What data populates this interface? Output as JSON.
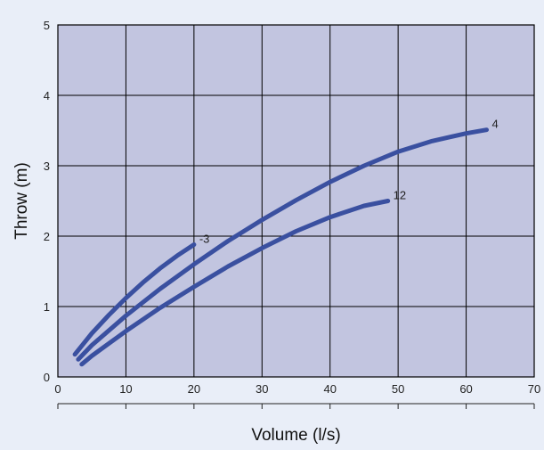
{
  "chart_data": {
    "type": "line",
    "title": "",
    "xlabel": "Volume  (l/s)",
    "ylabel": "Throw  (m)",
    "xlim": [
      0,
      70
    ],
    "ylim": [
      0,
      5
    ],
    "x_ticks": [
      "0",
      "10",
      "20",
      "30",
      "40",
      "50",
      "60",
      "70"
    ],
    "y_ticks": [
      "0",
      "1",
      "2",
      "3",
      "4",
      "5"
    ],
    "grid": true,
    "plot_background": "#c2c5e0",
    "grid_color": "#000000",
    "line_color": "#3a50a0",
    "series": [
      {
        "name": "-3",
        "x": [
          2.5,
          5,
          7.5,
          10,
          12.5,
          15,
          17.5,
          20
        ],
        "y": [
          0.32,
          0.62,
          0.88,
          1.12,
          1.34,
          1.54,
          1.72,
          1.88
        ]
      },
      {
        "name": "4",
        "x": [
          3,
          5,
          10,
          15,
          20,
          25,
          30,
          35,
          40,
          45,
          50,
          55,
          60,
          63
        ],
        "y": [
          0.25,
          0.45,
          0.87,
          1.25,
          1.6,
          1.93,
          2.23,
          2.51,
          2.77,
          3.0,
          3.2,
          3.35,
          3.46,
          3.51
        ]
      },
      {
        "name": "12",
        "x": [
          3.5,
          5,
          10,
          15,
          20,
          25,
          30,
          35,
          40,
          45,
          48.5
        ],
        "y": [
          0.18,
          0.3,
          0.65,
          0.98,
          1.28,
          1.57,
          1.83,
          2.07,
          2.27,
          2.43,
          2.5
        ]
      }
    ]
  }
}
